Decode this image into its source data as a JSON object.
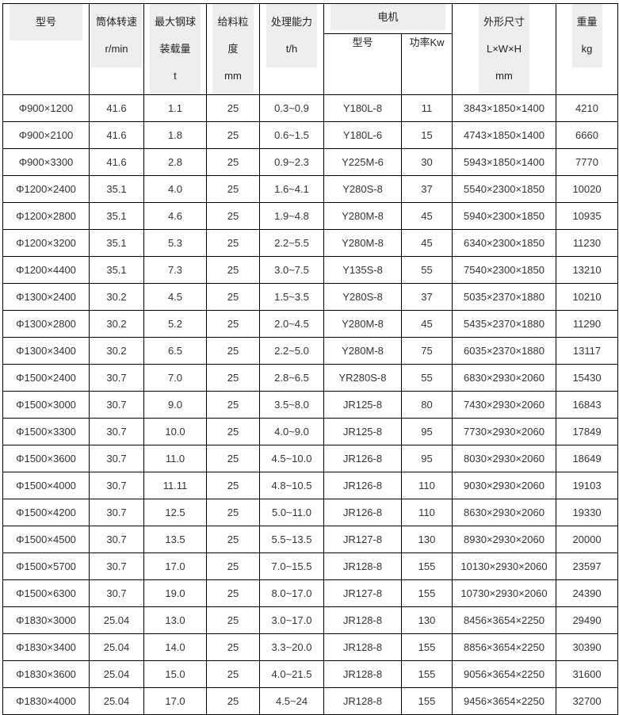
{
  "headers": {
    "model": [
      "型号"
    ],
    "speed": [
      "筒体转速",
      "r/min"
    ],
    "ball_load": [
      "最大钢球",
      "装载量",
      "t"
    ],
    "feed_size": [
      "给料粒",
      "度",
      "mm"
    ],
    "capacity": [
      "处理能力",
      "t/h"
    ],
    "motor": "电机",
    "motor_model": [
      "型号"
    ],
    "motor_power": [
      "功率",
      "Kw"
    ],
    "dimensions": [
      "外形尺寸",
      "L×W×H",
      "mm"
    ],
    "weight": [
      "重量",
      "kg"
    ]
  },
  "rows": [
    [
      "Φ900×1200",
      "41.6",
      "1.1",
      "25",
      "0.3~0.9",
      "Y180L-8",
      "11",
      "3843×1850×1400",
      "4210"
    ],
    [
      "Φ900×2100",
      "41.6",
      "1.8",
      "25",
      "0.6~1.5",
      "Y180L-6",
      "15",
      "4743×1850×1400",
      "6660"
    ],
    [
      "Φ900×3300",
      "41.6",
      "2.8",
      "25",
      "0.9~2.3",
      "Y225M-6",
      "30",
      "5943×1850×1400",
      "7770"
    ],
    [
      "Φ1200×2400",
      "35.1",
      "4.0",
      "25",
      "1.6~4.1",
      "Y280S-8",
      "37",
      "5540×2300×1850",
      "10020"
    ],
    [
      "Φ1200×2800",
      "35.1",
      "4.6",
      "25",
      "1.9~4.8",
      "Y280M-8",
      "45",
      "5940×2300×1850",
      "10935"
    ],
    [
      "Φ1200×3200",
      "35.1",
      "5.3",
      "25",
      "2.2~5.5",
      "Y280M-8",
      "45",
      "6340×2300×1850",
      "11230"
    ],
    [
      "Φ1200×4400",
      "35.1",
      "7.3",
      "25",
      "3.0~7.5",
      "Y135S-8",
      "55",
      "7540×2300×1850",
      "13210"
    ],
    [
      "Φ1300×2400",
      "30.2",
      "4.5",
      "25",
      "1.5~3.5",
      "Y280S-8",
      "37",
      "5035×2370×1880",
      "10210"
    ],
    [
      "Φ1300×2800",
      "30.2",
      "5.2",
      "25",
      "2.0~4.5",
      "Y280M-8",
      "45",
      "5435×2370×1880",
      "11290"
    ],
    [
      "Φ1300×3400",
      "30.2",
      "6.5",
      "25",
      "2.2~5.0",
      "Y280M-8",
      "75",
      "6035×2370×1880",
      "13117"
    ],
    [
      "Φ1500×2400",
      "30.7",
      "7.0",
      "25",
      "2.8~6.5",
      "YR280S-8",
      "55",
      "6830×2930×2060",
      "15430"
    ],
    [
      "Φ1500×3000",
      "30.7",
      "9.0",
      "25",
      "3.5~8.0",
      "JR125-8",
      "80",
      "7430×2930×2060",
      "16843"
    ],
    [
      "Φ1500×3300",
      "30.7",
      "10.0",
      "25",
      "4.0~9.0",
      "JR125-8",
      "95",
      "7730×2930×2060",
      "17849"
    ],
    [
      "Φ1500×3600",
      "30.7",
      "11.0",
      "25",
      "4.5~10.0",
      "JR126-8",
      "95",
      "8030×2930×2060",
      "18649"
    ],
    [
      "Φ1500×4000",
      "30.7",
      "11.11",
      "25",
      "4.8~10.5",
      "JR126-8",
      "110",
      "9030×2930×2060",
      "19103"
    ],
    [
      "Φ1500×4200",
      "30.7",
      "12.5",
      "25",
      "5.0~11.0",
      "JR126-8",
      "110",
      "8630×2930×2060",
      "19330"
    ],
    [
      "Φ1500×4500",
      "30.7",
      "13.5",
      "25",
      "5.5~13.5",
      "JR127-8",
      "130",
      "8930×2930×2060",
      "20000"
    ],
    [
      "Φ1500×5700",
      "30.7",
      "17.0",
      "25",
      "7.0~15.5",
      "JR128-8",
      "155",
      "10130×2930×2060",
      "23597"
    ],
    [
      "Φ1500×6300",
      "30.7",
      "19.0",
      "25",
      "8.0~17.0",
      "JR127-8",
      "155",
      "10730×2930×2060",
      "24390"
    ],
    [
      "Φ1830×3000",
      "25.04",
      "13.0",
      "25",
      "3.0~17.0",
      "JR128-8",
      "130",
      "8456×3654×2250",
      "29490"
    ],
    [
      "Φ1830×3400",
      "25.04",
      "14.0",
      "25",
      "3.3~20.0",
      "JR128-8",
      "155",
      "8856×3654×2250",
      "30390"
    ],
    [
      "Φ1830×3600",
      "25.04",
      "15.0",
      "25",
      "4.0~21.5",
      "JR128-8",
      "155",
      "9056×3654×2250",
      "31600"
    ],
    [
      "Φ1830×4000",
      "25.04",
      "17.0",
      "25",
      "4.5~24",
      "JR128-8",
      "155",
      "9456×3654×2250",
      "32700"
    ]
  ]
}
